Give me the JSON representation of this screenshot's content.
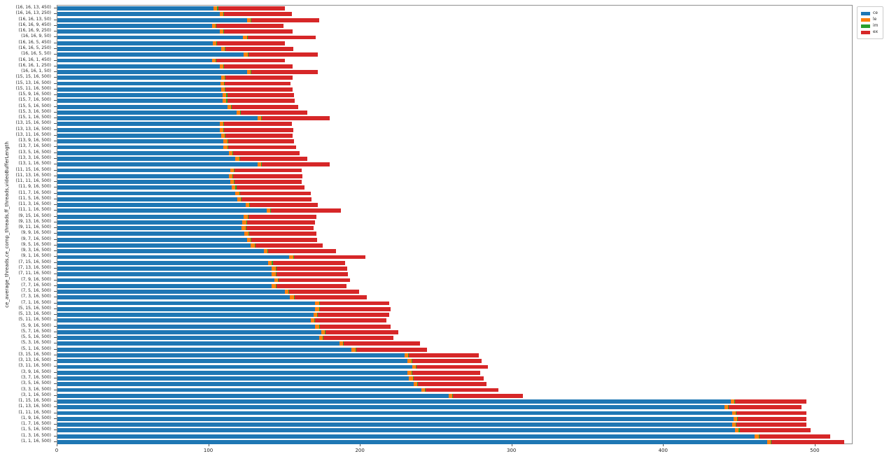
{
  "chart_data": {
    "type": "bar",
    "orientation": "horizontal",
    "stacked": true,
    "title": "",
    "xlabel": "",
    "ylabel": "ce_average_threads,ce_comp_threads,ff_threads,videoBufferLength",
    "xlim": [
      0,
      525
    ],
    "xticks": [
      0,
      100,
      200,
      300,
      400,
      500
    ],
    "grid": false,
    "legend_position": "upper right outside",
    "legend": [
      {
        "label": "ce",
        "color": "#1f77b4"
      },
      {
        "label": "le",
        "color": "#ff7f0e"
      },
      {
        "label": "im",
        "color": "#2ca02c"
      },
      {
        "label": "ex",
        "color": "#d62728"
      }
    ],
    "columns": [
      "label",
      "ce",
      "le",
      "im",
      "ex"
    ],
    "rows": [
      [
        "(16, 16, 13, 450)",
        103,
        2.5,
        0.5,
        44
      ],
      [
        "(16, 16, 13, 250)",
        107,
        2.5,
        0.5,
        44.5
      ],
      [
        "(16, 16, 13, 50)",
        125,
        2.5,
        0.5,
        44.5
      ],
      [
        "(16, 16, 9, 450)",
        102,
        2.5,
        0.5,
        44
      ],
      [
        "(16, 16, 9, 250)",
        107,
        2.5,
        0.5,
        45
      ],
      [
        "(16, 16, 9, 50)",
        122.5,
        2.5,
        0.5,
        45
      ],
      [
        "(16, 16, 5, 450)",
        102.5,
        2.5,
        0.5,
        44.5
      ],
      [
        "(16, 16, 5, 250)",
        108,
        2.5,
        0.5,
        44.5
      ],
      [
        "(16, 16, 5, 50)",
        123,
        2.5,
        0.5,
        46
      ],
      [
        "(16, 16, 1, 450)",
        102,
        2.5,
        0.5,
        45
      ],
      [
        "(16, 16, 1, 250)",
        107,
        2.5,
        0.5,
        45
      ],
      [
        "(16, 16, 1, 50)",
        125,
        2.5,
        0.5,
        44
      ],
      [
        "(15, 15, 16, 500)",
        108,
        2.5,
        0.5,
        44
      ],
      [
        "(15, 13, 16, 500)",
        107.5,
        2.5,
        0.5,
        43.5
      ],
      [
        "(15, 11, 16, 500)",
        108,
        2.5,
        0.5,
        44
      ],
      [
        "(15, 9, 16, 500)",
        109,
        2.5,
        0.5,
        44
      ],
      [
        "(15, 7, 16, 500)",
        109,
        2.5,
        0.5,
        44.5
      ],
      [
        "(15, 5, 16, 500)",
        112,
        2.5,
        0.5,
        44
      ],
      [
        "(15, 3, 16, 500)",
        118,
        2.5,
        0.5,
        44
      ],
      [
        "(15, 1, 16, 500)",
        132,
        2.5,
        0.5,
        44.5
      ],
      [
        "(13, 15, 16, 500)",
        107,
        2.5,
        0.5,
        44.5
      ],
      [
        "(13, 13, 16, 500)",
        107,
        2.5,
        0.5,
        45.5
      ],
      [
        "(13, 11, 16, 500)",
        108,
        2.5,
        0.5,
        44
      ],
      [
        "(13, 9, 16, 500)",
        109.5,
        2.5,
        0.5,
        43.5
      ],
      [
        "(13, 7, 16, 500)",
        109.5,
        2.5,
        0.5,
        45
      ],
      [
        "(13, 5, 16, 500)",
        113,
        2.5,
        0.5,
        44
      ],
      [
        "(13, 3, 16, 500)",
        117.5,
        2.5,
        0.5,
        44.5
      ],
      [
        "(13, 1, 16, 500)",
        132,
        2.5,
        0.5,
        44.5
      ],
      [
        "(11, 15, 16, 500)",
        114,
        2.5,
        0.5,
        44
      ],
      [
        "(11, 13, 16, 500)",
        113,
        2.5,
        0.5,
        45.5
      ],
      [
        "(11, 11, 16, 500)",
        114,
        2.5,
        0.5,
        44
      ],
      [
        "(11, 9, 16, 500)",
        115,
        2.5,
        0.5,
        45
      ],
      [
        "(11, 7, 16, 500)",
        117.5,
        2.5,
        0.5,
        46.5
      ],
      [
        "(11, 5, 16, 500)",
        118.5,
        2.5,
        0.5,
        46
      ],
      [
        "(11, 3, 16, 500)",
        124,
        2.5,
        0.5,
        45
      ],
      [
        "(11, 1, 16, 500)",
        138,
        2.5,
        0.5,
        46
      ],
      [
        "(9, 15, 16, 500)",
        123,
        2.5,
        0.5,
        45
      ],
      [
        "(9, 13, 16, 500)",
        122,
        2.5,
        0.5,
        45
      ],
      [
        "(9, 11, 16, 500)",
        121.5,
        2.5,
        0.5,
        44.5
      ],
      [
        "(9, 9, 16, 500)",
        123.5,
        2.5,
        0.5,
        44.5
      ],
      [
        "(9, 7, 16, 500)",
        125,
        2.5,
        0.5,
        43.5
      ],
      [
        "(9, 5, 16, 500)",
        127.5,
        2.5,
        0.5,
        44.5
      ],
      [
        "(9, 3, 16, 500)",
        136,
        2.5,
        0.5,
        45
      ],
      [
        "(9, 1, 16, 500)",
        153,
        2.5,
        0.5,
        47
      ],
      [
        "(7, 15, 16, 500)",
        139,
        2.5,
        0.5,
        48
      ],
      [
        "(7, 13, 16, 500)",
        141.5,
        2.5,
        0.5,
        46.5
      ],
      [
        "(7, 11, 16, 500)",
        141.5,
        2.5,
        0.5,
        47
      ],
      [
        "(7, 9, 16, 500)",
        143,
        2.5,
        0.5,
        47
      ],
      [
        "(7, 7, 16, 500)",
        141.5,
        2.5,
        0.5,
        46
      ],
      [
        "(7, 5, 16, 500)",
        150,
        2.5,
        0.5,
        46
      ],
      [
        "(7, 3, 16, 500)",
        153.5,
        2.5,
        0.5,
        47.5
      ],
      [
        "(7, 1, 16, 500)",
        170,
        2.5,
        0.5,
        46
      ],
      [
        "(5, 15, 16, 500)",
        170,
        2.5,
        0.5,
        47
      ],
      [
        "(5, 13, 16, 500)",
        169,
        2.5,
        0.5,
        47
      ],
      [
        "(5, 11, 16, 500)",
        167,
        2.5,
        0.5,
        47
      ],
      [
        "(5, 9, 16, 500)",
        170,
        2.5,
        0.5,
        47
      ],
      [
        "(5, 7, 16, 500)",
        174,
        2.5,
        0.5,
        48
      ],
      [
        "(5, 5, 16, 500)",
        172.5,
        2.5,
        0.5,
        46
      ],
      [
        "(5, 3, 16, 500)",
        186,
        2.5,
        0.5,
        50
      ],
      [
        "(5, 1, 16, 500)",
        194,
        2.5,
        0.5,
        47
      ],
      [
        "(3, 15, 16, 500)",
        229,
        2.5,
        0.5,
        46
      ],
      [
        "(3, 13, 16, 500)",
        231,
        2.5,
        0.5,
        46
      ],
      [
        "(3, 11, 16, 500)",
        234,
        2.5,
        0.5,
        47
      ],
      [
        "(3, 9, 16, 500)",
        231,
        2.5,
        0.5,
        45
      ],
      [
        "(3, 7, 16, 500)",
        232,
        2.5,
        0.5,
        46
      ],
      [
        "(3, 5, 16, 500)",
        235,
        2.5,
        0.5,
        45
      ],
      [
        "(3, 3, 16, 500)",
        240,
        2.5,
        0.5,
        48
      ],
      [
        "(3, 1, 16, 500)",
        258,
        2.5,
        0.5,
        46
      ],
      [
        "(1, 15, 16, 500)",
        444,
        2.5,
        0.5,
        47
      ],
      [
        "(1, 13, 16, 500)",
        440,
        2.5,
        0.5,
        48
      ],
      [
        "(1, 11, 16, 500)",
        445,
        2.5,
        0.5,
        46
      ],
      [
        "(1, 9, 16, 500)",
        446,
        2.5,
        0.5,
        45
      ],
      [
        "(1, 7, 16, 500)",
        445,
        2.5,
        0.5,
        46
      ],
      [
        "(1, 5, 16, 500)",
        447,
        2.5,
        0.5,
        47
      ],
      [
        "(1, 3, 16, 500)",
        460,
        2.5,
        0.5,
        47
      ],
      [
        "(1, 1, 16, 500)",
        468,
        2.5,
        0.5,
        48
      ]
    ]
  }
}
